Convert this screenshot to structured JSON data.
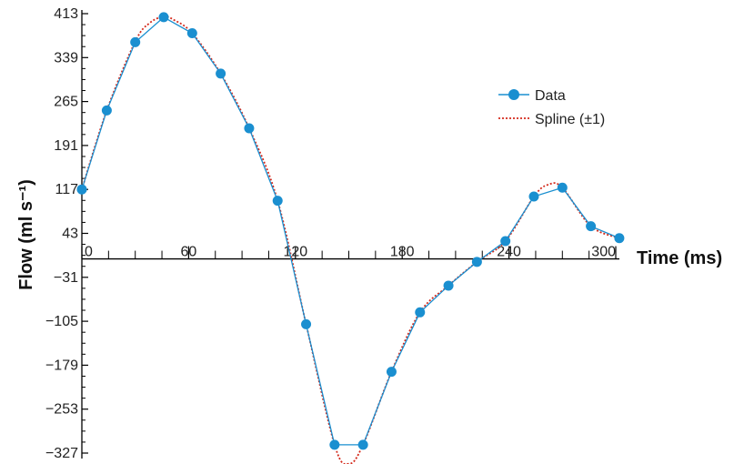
{
  "chart_data": {
    "type": "line",
    "title": "",
    "xlabel": "Time (ms)",
    "ylabel": "Flow (ml s⁻¹)",
    "xlim": [
      0,
      300
    ],
    "ylim": [
      -327,
      413
    ],
    "x_ticks": [
      0,
      60,
      120,
      180,
      240,
      300
    ],
    "x_tick_labels": [
      "0",
      "60",
      "120",
      "180",
      "240",
      "300"
    ],
    "y_ticks": [
      413,
      339,
      265,
      191,
      117,
      43,
      -31,
      -105,
      -179,
      -253,
      -327
    ],
    "y_tick_labels": [
      "413",
      "339",
      "265",
      "191",
      "117",
      "43",
      "−31",
      "−105",
      "−179",
      "−253",
      "−327"
    ],
    "grid": false,
    "legend_position": "right",
    "series": [
      {
        "name": "Data",
        "color": "#1a8fd0",
        "marker": "circle",
        "x": [
          0,
          14,
          30,
          46,
          62,
          78,
          94,
          110,
          126,
          142,
          158,
          174,
          190,
          206,
          222,
          238,
          254,
          270,
          286,
          302
        ],
        "y": [
          117,
          250,
          365,
          407,
          380,
          312,
          220,
          98,
          -110,
          -313,
          -313,
          -190,
          -90,
          -45,
          -5,
          30,
          105,
          120,
          55,
          35
        ]
      },
      {
        "name": "Spline (±1)",
        "color": "#d42a1c",
        "linestyle": "dotted",
        "x": [
          0,
          14,
          30,
          38,
          46,
          52,
          62,
          78,
          94,
          110,
          126,
          142,
          150,
          158,
          174,
          190,
          206,
          222,
          238,
          254,
          262,
          270,
          286,
          302
        ],
        "y": [
          117,
          250,
          366,
          397,
          408,
          402,
          380,
          312,
          220,
          98,
          -110,
          -313,
          -345,
          -313,
          -190,
          -90,
          -45,
          -5,
          30,
          105,
          125,
          120,
          55,
          35
        ]
      }
    ]
  }
}
